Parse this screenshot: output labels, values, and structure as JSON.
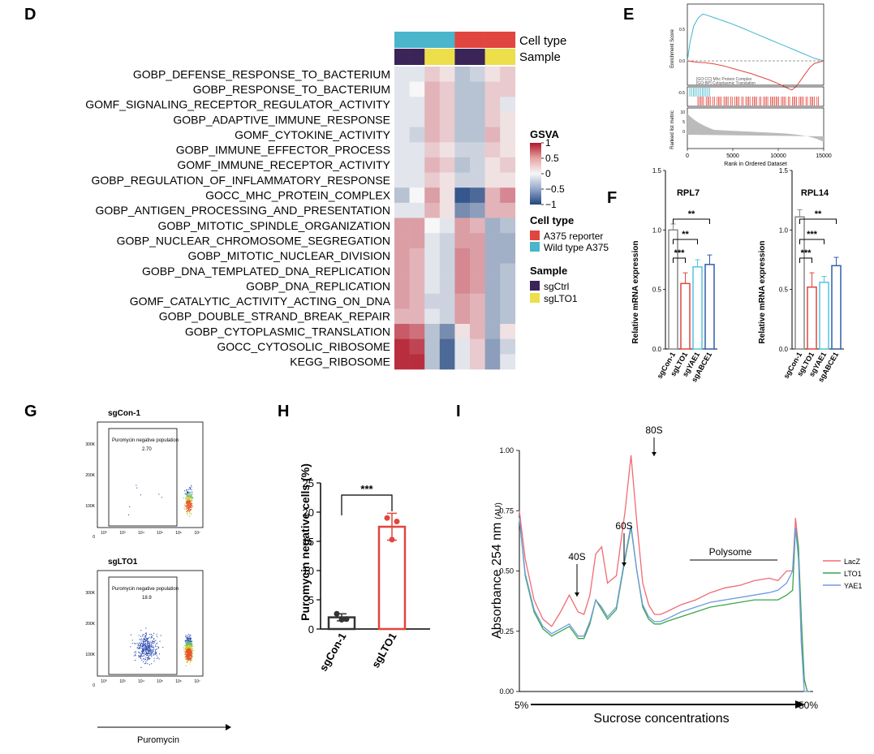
{
  "panels": {
    "D": {
      "letter": "D",
      "annotation_labels": {
        "cell_type": "Cell type",
        "sample": "Sample"
      },
      "terms": [
        "GOBP_DEFENSE_RESPONSE_TO_BACTERIUM",
        "GOBP_RESPONSE_TO_BACTERIUM",
        "GOMF_SIGNALING_RECEPTOR_REGULATOR_ACTIVITY",
        "GOBP_ADAPTIVE_IMMUNE_RESPONSE",
        "GOMF_CYTOKINE_ACTIVITY",
        "GOBP_IMMUNE_EFFECTOR_PROCESS",
        "GOMF_IMMUNE_RECEPTOR_ACTIVITY",
        "GOBP_REGULATION_OF_INFLAMMATORY_RESPONSE",
        "GOCC_MHC_PROTEIN_COMPLEX",
        "GOBP_ANTIGEN_PROCESSING_AND_PRESENTATION",
        "GOBP_MITOTIC_SPINDLE_ORGANIZATION",
        "GOBP_NUCLEAR_CHROMOSOME_SEGREGATION",
        "GOBP_MITOTIC_NUCLEAR_DIVISION",
        "GOBP_DNA_TEMPLATED_DNA_REPLICATION",
        "GOBP_DNA_REPLICATION",
        "GOMF_CATALYTIC_ACTIVITY_ACTING_ON_DNA",
        "GOBP_DOUBLE_STRAND_BREAK_REPAIR",
        "GOBP_CYTOPLASMIC_TRANSLATION",
        "GOCC_CYTOSOLIC_RIBOSOME",
        "KEGG_RIBOSOME"
      ],
      "column_cell_type": [
        "Wild type A375",
        "Wild type A375",
        "Wild type A375",
        "Wild type A375",
        "A375 reporter",
        "A375 reporter",
        "A375 reporter",
        "A375 reporter"
      ],
      "column_sample": [
        "sgCtrl",
        "sgCtrl",
        "sgLTO1",
        "sgLTO1",
        "sgCtrl",
        "sgCtrl",
        "sgLTO1",
        "sgLTO1"
      ],
      "values": [
        [
          -0.1,
          -0.1,
          0.2,
          0.1,
          -0.3,
          -0.2,
          0.1,
          0.2
        ],
        [
          -0.1,
          0.0,
          0.3,
          0.2,
          -0.3,
          -0.3,
          0.2,
          0.2
        ],
        [
          -0.1,
          -0.1,
          0.3,
          0.2,
          -0.3,
          -0.3,
          0.2,
          -0.1
        ],
        [
          -0.1,
          -0.1,
          0.3,
          0.2,
          -0.3,
          -0.3,
          0.2,
          0.1
        ],
        [
          -0.1,
          -0.2,
          0.3,
          0.2,
          -0.3,
          -0.3,
          0.3,
          0.1
        ],
        [
          -0.1,
          -0.1,
          0.2,
          0.1,
          -0.2,
          -0.2,
          0.2,
          0.1
        ],
        [
          -0.1,
          -0.1,
          0.3,
          0.2,
          -0.3,
          -0.2,
          0.1,
          0.2
        ],
        [
          -0.1,
          -0.1,
          0.2,
          0.1,
          -0.2,
          -0.2,
          0.1,
          0.1
        ],
        [
          -0.3,
          0.0,
          0.4,
          0.1,
          -0.9,
          -0.8,
          0.3,
          0.5
        ],
        [
          -0.1,
          -0.1,
          0.3,
          0.1,
          -0.6,
          -0.5,
          0.3,
          0.3
        ],
        [
          0.4,
          0.4,
          0.0,
          -0.1,
          0.4,
          0.3,
          -0.4,
          -0.3
        ],
        [
          0.4,
          0.4,
          -0.1,
          -0.2,
          0.4,
          0.4,
          -0.4,
          -0.4
        ],
        [
          0.4,
          0.3,
          -0.1,
          -0.2,
          0.5,
          0.4,
          -0.4,
          -0.4
        ],
        [
          0.4,
          0.3,
          -0.1,
          -0.2,
          0.5,
          0.4,
          -0.4,
          -0.3
        ],
        [
          0.4,
          0.3,
          -0.1,
          -0.2,
          0.5,
          0.4,
          -0.4,
          -0.3
        ],
        [
          0.4,
          0.3,
          -0.2,
          -0.2,
          0.4,
          0.3,
          -0.4,
          -0.3
        ],
        [
          0.3,
          0.3,
          -0.1,
          -0.2,
          0.4,
          0.3,
          -0.4,
          -0.3
        ],
        [
          0.7,
          0.6,
          -0.3,
          -0.6,
          0.1,
          0.3,
          -0.4,
          0.1
        ],
        [
          0.9,
          0.8,
          -0.3,
          -0.8,
          -0.1,
          0.2,
          -0.5,
          -0.2
        ],
        [
          0.9,
          0.9,
          -0.3,
          -0.8,
          -0.1,
          0.2,
          -0.5,
          -0.1
        ]
      ],
      "legend": {
        "gsva_title": "GSVA",
        "gsva_ticks": [
          "1",
          "0.5",
          "0",
          "−0.5",
          "−1"
        ],
        "cell_type_title": "Cell type",
        "cell_type_items": [
          {
            "label": "A375 reporter",
            "color": "#e0463f"
          },
          {
            "label": "Wild type A375",
            "color": "#4bb5cb"
          }
        ],
        "sample_title": "Sample",
        "sample_items": [
          {
            "label": "sgCtrl",
            "color": "#3a2458"
          },
          {
            "label": "sgLTO1",
            "color": "#ecdf4a"
          }
        ]
      }
    },
    "E": {
      "letter": "E",
      "ylabel_top": "Enrichment Score",
      "ylabel_bottom": "Ranked list metric",
      "xlabel": "Rank in Ordered Dataset",
      "x_ticks": [
        "0",
        "5000",
        "10000",
        "15000"
      ],
      "y_ticks_top": [
        "0.5",
        "0.0",
        "-0.5"
      ],
      "y_ticks_bottom": [
        "10",
        "5",
        "0"
      ],
      "legend": [
        "[GO:CC] Mhc Protein Complex",
        "[GO:BP] Cytoplasmic Translation"
      ],
      "colors": {
        "mhc": "#3fb6c9",
        "translation": "#e0463f"
      }
    },
    "F": {
      "letter": "F",
      "ylabel": "Relative mRNA expression",
      "y_ticks": [
        "0.0",
        "0.5",
        "1.0",
        "1.5"
      ],
      "charts": [
        {
          "title": "RPL7",
          "categories": [
            "sgCon-1",
            "sgLTO1",
            "sgYAE1",
            "sgABCE1"
          ],
          "values": [
            1.0,
            0.55,
            0.69,
            0.71
          ],
          "errors": [
            0.05,
            0.09,
            0.06,
            0.08
          ],
          "sig": [
            "***",
            "**",
            "**"
          ]
        },
        {
          "title": "RPL14",
          "categories": [
            "sgCon-1",
            "sgLTO1",
            "sgYAE1",
            "sgABCE1"
          ],
          "values": [
            1.11,
            0.52,
            0.56,
            0.7
          ],
          "errors": [
            0.06,
            0.12,
            0.05,
            0.07
          ],
          "sig": [
            "***",
            "***",
            "**"
          ]
        }
      ],
      "colors": [
        "#888888",
        "#e0463f",
        "#53c4e0",
        "#2f5ea8"
      ]
    },
    "G": {
      "letter": "G",
      "plots": [
        {
          "title": "sgCon-1",
          "gate_label": "Puromycin negative population",
          "gate_value": "2.70"
        },
        {
          "title": "sgLTO1",
          "gate_label": "Puromycin negative population",
          "gate_value": "18.9"
        }
      ],
      "y_ticks": [
        "300K",
        "200K",
        "100K",
        "0"
      ],
      "x_ticks": [
        "10⁰",
        "10³",
        "10⁴",
        "10⁵",
        "10⁶",
        "10⁷"
      ],
      "xlabel": "Puromycin"
    },
    "H": {
      "letter": "H",
      "ylabel": "Puromycin negative cells (%)",
      "y_ticks": [
        "0",
        "5",
        "10",
        "15",
        "20",
        "25"
      ],
      "categories": [
        "sgCon-1",
        "sgLTO1"
      ],
      "values": [
        2.0,
        17.5
      ],
      "errors": [
        0.6,
        2.3
      ],
      "points": [
        [
          2.6,
          1.7,
          1.6
        ],
        [
          19.0,
          18.4,
          15.3
        ]
      ],
      "sig": "***",
      "colors": [
        "#333333",
        "#e0463f"
      ]
    },
    "I": {
      "letter": "I",
      "ylabel": "Absorbance 254 nm",
      "ylabel_unit": "(AU)",
      "xlabel": "Sucrose concentrations",
      "x_start": "5%",
      "x_end": "50%",
      "y_ticks": [
        "1.00",
        "0.75",
        "0.50",
        "0.25",
        "0.00"
      ],
      "peaks": [
        "40S",
        "60S",
        "80S"
      ],
      "polysome_label": "Polysome",
      "legend": [
        {
          "label": "LacZ",
          "color": "#ef6b73"
        },
        {
          "label": "LTO1",
          "color": "#3aa64a"
        },
        {
          "label": "YAE1",
          "color": "#6e9be0"
        }
      ]
    }
  },
  "chart_data": [
    {
      "type": "heatmap",
      "panel": "D",
      "rows": [
        "GOBP_DEFENSE_RESPONSE_TO_BACTERIUM",
        "GOBP_RESPONSE_TO_BACTERIUM",
        "GOMF_SIGNALING_RECEPTOR_REGULATOR_ACTIVITY",
        "GOBP_ADAPTIVE_IMMUNE_RESPONSE",
        "GOMF_CYTOKINE_ACTIVITY",
        "GOBP_IMMUNE_EFFECTOR_PROCESS",
        "GOMF_IMMUNE_RECEPTOR_ACTIVITY",
        "GOBP_REGULATION_OF_INFLAMMATORY_RESPONSE",
        "GOCC_MHC_PROTEIN_COMPLEX",
        "GOBP_ANTIGEN_PROCESSING_AND_PRESENTATION",
        "GOBP_MITOTIC_SPINDLE_ORGANIZATION",
        "GOBP_NUCLEAR_CHROMOSOME_SEGREGATION",
        "GOBP_MITOTIC_NUCLEAR_DIVISION",
        "GOBP_DNA_TEMPLATED_DNA_REPLICATION",
        "GOBP_DNA_REPLICATION",
        "GOMF_CATALYTIC_ACTIVITY_ACTING_ON_DNA",
        "GOBP_DOUBLE_STRAND_BREAK_REPAIR",
        "GOBP_CYTOPLASMIC_TRANSLATION",
        "GOCC_CYTOSOLIC_RIBOSOME",
        "KEGG_RIBOSOME"
      ],
      "color_range": [
        -1,
        1
      ]
    },
    {
      "type": "line",
      "panel": "E",
      "xlabel": "Rank in Ordered Dataset",
      "ylabel": "Enrichment Score",
      "xlim": [
        0,
        15000
      ],
      "series": [
        {
          "name": "[GO:CC] Mhc Protein Complex",
          "x": [
            0,
            300,
            700,
            1200,
            1700,
            2200,
            3000,
            4000,
            5000,
            6000,
            7000,
            8000,
            9000,
            10000,
            11000,
            12000,
            13000,
            14000,
            15000
          ],
          "y": [
            0,
            0.3,
            0.55,
            0.68,
            0.74,
            0.72,
            0.68,
            0.63,
            0.58,
            0.52,
            0.46,
            0.4,
            0.34,
            0.28,
            0.22,
            0.16,
            0.1,
            0.04,
            0
          ]
        },
        {
          "name": "[GO:BP] Cytoplasmic Translation",
          "x": [
            0,
            1000,
            2000,
            3000,
            4000,
            5000,
            6000,
            7000,
            8000,
            9000,
            10000,
            11000,
            11500,
            12000,
            12500,
            13000,
            13500,
            14000,
            15000
          ],
          "y": [
            0,
            -0.02,
            -0.03,
            -0.05,
            -0.08,
            -0.12,
            -0.16,
            -0.2,
            -0.25,
            -0.3,
            -0.36,
            -0.43,
            -0.46,
            -0.4,
            -0.3,
            -0.2,
            -0.1,
            -0.04,
            0
          ]
        }
      ]
    },
    {
      "type": "bar",
      "panel": "F",
      "title": "RPL7",
      "categories": [
        "sgCon-1",
        "sgLTO1",
        "sgYAE1",
        "sgABCE1"
      ],
      "values": [
        1.0,
        0.55,
        0.69,
        0.71
      ],
      "ylabel": "Relative mRNA expression",
      "ylim": [
        0,
        1.5
      ]
    },
    {
      "type": "bar",
      "panel": "F",
      "title": "RPL14",
      "categories": [
        "sgCon-1",
        "sgLTO1",
        "sgYAE1",
        "sgABCE1"
      ],
      "values": [
        1.11,
        0.52,
        0.56,
        0.7
      ],
      "ylabel": "Relative mRNA expression",
      "ylim": [
        0,
        1.5
      ]
    },
    {
      "type": "scatter",
      "panel": "G",
      "title": "sgCon-1",
      "xlabel": "Puromycin",
      "gate_percent": 2.7
    },
    {
      "type": "scatter",
      "panel": "G",
      "title": "sgLTO1",
      "xlabel": "Puromycin",
      "gate_percent": 18.9
    },
    {
      "type": "bar",
      "panel": "H",
      "categories": [
        "sgCon-1",
        "sgLTO1"
      ],
      "values": [
        2.0,
        17.5
      ],
      "ylabel": "Puromycin negative cells (%)",
      "ylim": [
        0,
        25
      ]
    },
    {
      "type": "line",
      "panel": "I",
      "ylabel": "Absorbance 254 nm",
      "xlabel": "Sucrose concentrations",
      "ylim": [
        0,
        1.0
      ],
      "xlim": [
        0,
        100
      ],
      "series": [
        {
          "name": "LacZ",
          "x": [
            0,
            2,
            5,
            8,
            11,
            14,
            17,
            20,
            22,
            24,
            26,
            28,
            30,
            33,
            36,
            38,
            40,
            42,
            44,
            46,
            48,
            50,
            55,
            60,
            65,
            70,
            75,
            80,
            85,
            88,
            91,
            93,
            94,
            95,
            96,
            97,
            98,
            99
          ],
          "y": [
            0.75,
            0.55,
            0.38,
            0.3,
            0.27,
            0.33,
            0.4,
            0.33,
            0.32,
            0.4,
            0.57,
            0.6,
            0.45,
            0.48,
            0.75,
            0.98,
            0.7,
            0.45,
            0.36,
            0.32,
            0.32,
            0.33,
            0.36,
            0.38,
            0.41,
            0.43,
            0.44,
            0.46,
            0.47,
            0.46,
            0.5,
            0.5,
            0.72,
            0.6,
            0.2,
            0.05,
            0.0,
            0.0
          ]
        },
        {
          "name": "LTO1",
          "x": [
            0,
            2,
            5,
            8,
            11,
            14,
            17,
            20,
            22,
            24,
            26,
            28,
            30,
            33,
            36,
            38,
            40,
            42,
            44,
            46,
            48,
            50,
            55,
            60,
            65,
            70,
            75,
            80,
            85,
            88,
            91,
            93,
            94,
            95,
            96,
            97,
            98,
            99
          ],
          "y": [
            0.72,
            0.48,
            0.33,
            0.26,
            0.23,
            0.25,
            0.27,
            0.22,
            0.22,
            0.28,
            0.38,
            0.34,
            0.3,
            0.34,
            0.55,
            0.68,
            0.5,
            0.35,
            0.3,
            0.28,
            0.28,
            0.29,
            0.31,
            0.33,
            0.35,
            0.36,
            0.37,
            0.38,
            0.38,
            0.38,
            0.4,
            0.42,
            0.68,
            0.6,
            0.3,
            0.05,
            0.0,
            0.0
          ]
        },
        {
          "name": "YAE1",
          "x": [
            0,
            2,
            5,
            8,
            11,
            14,
            17,
            20,
            22,
            24,
            26,
            28,
            30,
            33,
            36,
            38,
            40,
            42,
            44,
            46,
            48,
            50,
            55,
            60,
            65,
            70,
            75,
            80,
            85,
            88,
            91,
            93,
            94,
            95,
            96,
            97,
            98,
            99
          ],
          "y": [
            0.72,
            0.49,
            0.34,
            0.27,
            0.24,
            0.26,
            0.28,
            0.23,
            0.23,
            0.29,
            0.38,
            0.35,
            0.31,
            0.35,
            0.56,
            0.69,
            0.5,
            0.36,
            0.31,
            0.29,
            0.29,
            0.3,
            0.33,
            0.35,
            0.37,
            0.38,
            0.39,
            0.4,
            0.41,
            0.42,
            0.45,
            0.5,
            0.68,
            0.55,
            0.2,
            0.0,
            0.0,
            0.0
          ]
        }
      ]
    }
  ]
}
